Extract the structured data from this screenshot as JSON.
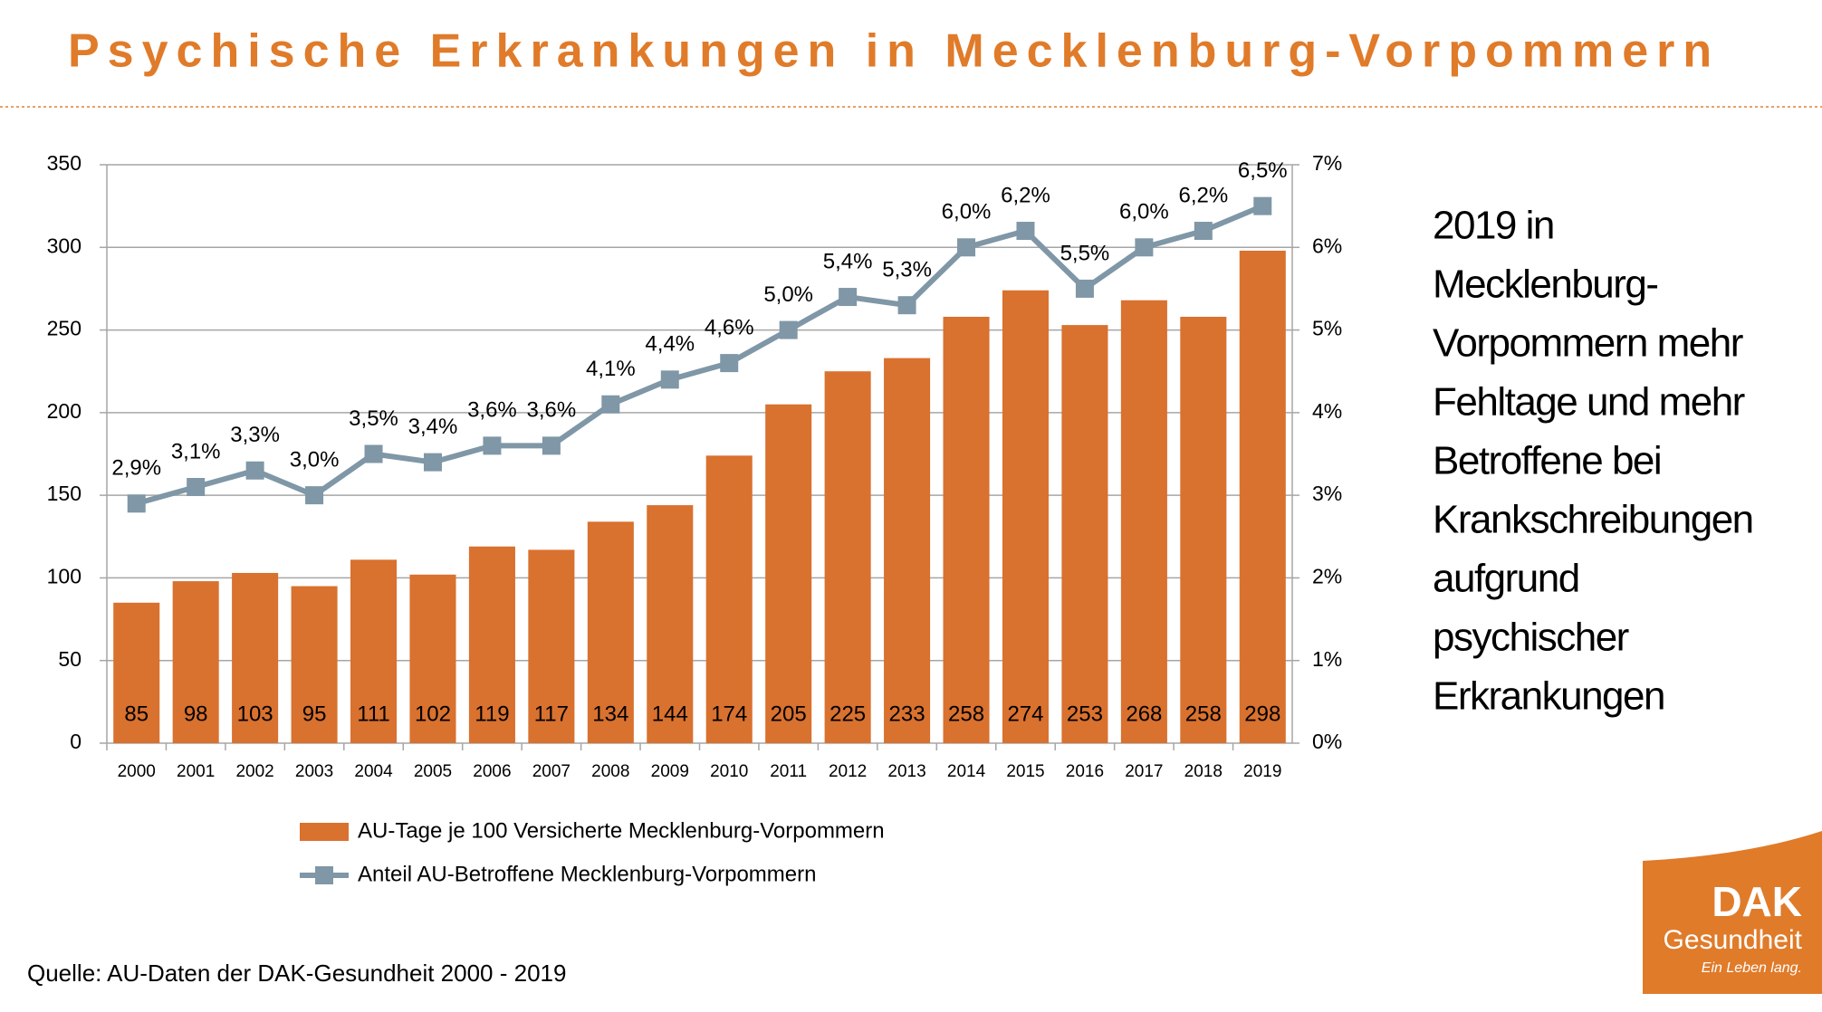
{
  "chart_data": {
    "type": "bar_line",
    "title": "Psychische Erkrankungen in Mecklenburg-Vorpommern",
    "categories": [
      "2000",
      "2001",
      "2002",
      "2003",
      "2004",
      "2005",
      "2006",
      "2007",
      "2008",
      "2009",
      "2010",
      "2011",
      "2012",
      "2013",
      "2014",
      "2015",
      "2016",
      "2017",
      "2018",
      "2019"
    ],
    "series": [
      {
        "name": "AU-Tage je 100 Versicherte Mecklenburg-Vorpommern",
        "type": "bar",
        "color": "#d9712f",
        "values": [
          85,
          98,
          103,
          95,
          111,
          102,
          119,
          117,
          134,
          144,
          174,
          205,
          225,
          233,
          258,
          274,
          253,
          268,
          258,
          298
        ]
      },
      {
        "name": "Anteil AU-Betroffene Mecklenburg-Vorpommern",
        "type": "line",
        "axis": "y2",
        "color": "#7f97a6",
        "values": [
          2.9,
          3.1,
          3.3,
          3.0,
          3.5,
          3.4,
          3.6,
          3.6,
          4.1,
          4.4,
          4.6,
          5.0,
          5.4,
          5.3,
          6.0,
          6.2,
          5.5,
          6.0,
          6.2,
          6.5
        ],
        "value_labels": [
          "2,9%",
          "3,1%",
          "3,3%",
          "3,0%",
          "3,5%",
          "3,4%",
          "3,6%",
          "3,6%",
          "4,1%",
          "4,4%",
          "4,6%",
          "5,0%",
          "5,4%",
          "5,3%",
          "6,0%",
          "6,2%",
          "5,5%",
          "6,0%",
          "6,2%",
          "6,5%"
        ]
      }
    ],
    "ylim": [
      0,
      350
    ],
    "yticks": [
      0,
      50,
      100,
      150,
      200,
      250,
      300,
      350
    ],
    "y2lim": [
      0,
      7
    ],
    "y2ticks": [
      {
        "value": 0,
        "label": "0%"
      },
      {
        "value": 1,
        "label": "1%"
      },
      {
        "value": 2,
        "label": "2%"
      },
      {
        "value": 3,
        "label": "3%"
      },
      {
        "value": 4,
        "label": "4%"
      },
      {
        "value": 5,
        "label": "5%"
      },
      {
        "value": 6,
        "label": "6%"
      },
      {
        "value": 7,
        "label": "7%"
      }
    ],
    "grid": true,
    "legend": "bottom"
  },
  "side_text": [
    "2019 in",
    "Mecklenburg-",
    "Vorpommern mehr",
    "Fehltage und mehr",
    "Betroffene bei",
    "Krankschreibungen",
    "aufgrund",
    "psychischer",
    "Erkrankungen"
  ],
  "source": "Quelle: AU-Daten der DAK-Gesundheit 2000 - 2019",
  "logo": {
    "name": "DAK",
    "sub": "Gesundheit",
    "slogan": "Ein Leben lang."
  }
}
